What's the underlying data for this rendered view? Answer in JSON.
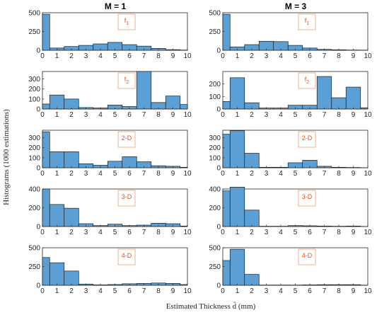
{
  "figure": {
    "col_titles": [
      "M = 1",
      "M = 3"
    ],
    "ylabel": "Histograms (1000 estimations)",
    "xlabel": "Estimated Thickness d̃ (mm)"
  },
  "colors": {
    "bar": "#5b9fd4",
    "bar_edge": "#1f1f1f",
    "label": "#d9531e",
    "label_box": "#e8a071"
  },
  "chart_data": [
    {
      "type": "bar",
      "panel_label": "f1",
      "col": 0,
      "row": 0,
      "ylim": [
        0,
        500
      ],
      "yticks": [
        0,
        250,
        500
      ],
      "xlim": [
        0,
        10
      ],
      "xticks": [
        0,
        1,
        2,
        3,
        4,
        5,
        6,
        7,
        8,
        9,
        10
      ],
      "bins": [
        [
          0,
          0.5,
          480
        ],
        [
          0.5,
          1.5,
          30
        ],
        [
          1.5,
          2.5,
          50
        ],
        [
          2.5,
          3.5,
          65
        ],
        [
          3.5,
          4.5,
          85
        ],
        [
          4.5,
          5.5,
          105
        ],
        [
          5.5,
          6.5,
          75
        ],
        [
          6.5,
          7.5,
          55
        ],
        [
          7.5,
          8.5,
          25
        ],
        [
          8.5,
          9.5,
          8
        ],
        [
          9.5,
          10,
          3
        ]
      ]
    },
    {
      "type": "bar",
      "panel_label": "f2",
      "col": 0,
      "row": 1,
      "ylim": [
        0,
        375
      ],
      "yticks": [
        0,
        100,
        200,
        300
      ],
      "xlim": [
        0,
        10
      ],
      "xticks": [
        0,
        1,
        2,
        3,
        4,
        5,
        6,
        7,
        8,
        9,
        10
      ],
      "bins": [
        [
          0,
          0.5,
          50
        ],
        [
          0.5,
          1.5,
          140
        ],
        [
          1.5,
          2.5,
          100
        ],
        [
          2.5,
          3.5,
          15
        ],
        [
          3.5,
          4.5,
          10
        ],
        [
          4.5,
          5.5,
          40
        ],
        [
          5.5,
          6.5,
          25
        ],
        [
          6.5,
          7.5,
          375
        ],
        [
          7.5,
          8.5,
          65
        ],
        [
          8.5,
          9.5,
          130
        ],
        [
          9.5,
          10,
          45
        ]
      ]
    },
    {
      "type": "bar",
      "panel_label": "2-D",
      "col": 0,
      "row": 2,
      "ylim": [
        0,
        375
      ],
      "yticks": [
        0,
        100,
        200,
        300
      ],
      "xlim": [
        0,
        10
      ],
      "xticks": [
        0,
        1,
        2,
        3,
        4,
        5,
        6,
        7,
        8,
        9,
        10
      ],
      "bins": [
        [
          0,
          0.5,
          360
        ],
        [
          0.5,
          1.5,
          160
        ],
        [
          1.5,
          2.5,
          160
        ],
        [
          2.5,
          3.5,
          40
        ],
        [
          3.5,
          4.5,
          25
        ],
        [
          4.5,
          5.5,
          65
        ],
        [
          5.5,
          6.5,
          110
        ],
        [
          6.5,
          7.5,
          60
        ],
        [
          7.5,
          8.5,
          20
        ],
        [
          8.5,
          9.5,
          15
        ],
        [
          9.5,
          10,
          5
        ]
      ]
    },
    {
      "type": "bar",
      "panel_label": "3-D",
      "col": 0,
      "row": 3,
      "ylim": [
        0,
        400
      ],
      "yticks": [
        0,
        200,
        400
      ],
      "xlim": [
        0,
        10
      ],
      "xticks": [
        0,
        1,
        2,
        3,
        4,
        5,
        6,
        7,
        8,
        9,
        10
      ],
      "bins": [
        [
          0,
          0.5,
          400
        ],
        [
          0.5,
          1.5,
          235
        ],
        [
          1.5,
          2.5,
          195
        ],
        [
          2.5,
          3.5,
          30
        ],
        [
          3.5,
          4.5,
          10
        ],
        [
          4.5,
          5.5,
          25
        ],
        [
          5.5,
          6.5,
          10
        ],
        [
          6.5,
          7.5,
          15
        ],
        [
          7.5,
          8.5,
          35
        ],
        [
          8.5,
          9.5,
          30
        ],
        [
          9.5,
          10,
          5
        ]
      ]
    },
    {
      "type": "bar",
      "panel_label": "4-D",
      "col": 0,
      "row": 4,
      "ylim": [
        0,
        500
      ],
      "yticks": [
        0,
        250,
        500
      ],
      "xlim": [
        0,
        10
      ],
      "xticks": [
        0,
        1,
        2,
        3,
        4,
        5,
        6,
        7,
        8,
        9,
        10
      ],
      "bins": [
        [
          0,
          0.5,
          370
        ],
        [
          0.5,
          1.5,
          300
        ],
        [
          1.5,
          2.5,
          190
        ],
        [
          2.5,
          3.5,
          15
        ],
        [
          3.5,
          4.5,
          5
        ],
        [
          4.5,
          5.5,
          10
        ],
        [
          5.5,
          6.5,
          20
        ],
        [
          6.5,
          7.5,
          25
        ],
        [
          7.5,
          8.5,
          30
        ],
        [
          8.5,
          9.5,
          25
        ],
        [
          9.5,
          10,
          10
        ]
      ]
    },
    {
      "type": "bar",
      "panel_label": "f1",
      "col": 1,
      "row": 0,
      "ylim": [
        0,
        500
      ],
      "yticks": [
        0,
        250,
        500
      ],
      "xlim": [
        0,
        10
      ],
      "xticks": [
        0,
        1,
        2,
        3,
        4,
        5,
        6,
        7,
        8,
        9,
        10
      ],
      "bins": [
        [
          0,
          0.5,
          480
        ],
        [
          0.5,
          1.5,
          45
        ],
        [
          1.5,
          2.5,
          75
        ],
        [
          2.5,
          3.5,
          120
        ],
        [
          3.5,
          4.5,
          115
        ],
        [
          4.5,
          5.5,
          65
        ],
        [
          5.5,
          6.5,
          30
        ],
        [
          6.5,
          7.5,
          12
        ],
        [
          7.5,
          8.5,
          6
        ],
        [
          8.5,
          9.5,
          3
        ],
        [
          9.5,
          10,
          2
        ]
      ]
    },
    {
      "type": "bar",
      "panel_label": "f2",
      "col": 1,
      "row": 1,
      "ylim": [
        0,
        300
      ],
      "yticks": [
        0,
        100,
        200
      ],
      "xlim": [
        0,
        10
      ],
      "xticks": [
        0,
        1,
        2,
        3,
        4,
        5,
        6,
        7,
        8,
        9,
        10
      ],
      "bins": [
        [
          0,
          0.5,
          60
        ],
        [
          0.5,
          1.5,
          250
        ],
        [
          1.5,
          2.5,
          50
        ],
        [
          2.5,
          3.5,
          8
        ],
        [
          3.5,
          4.5,
          8
        ],
        [
          4.5,
          5.5,
          30
        ],
        [
          5.5,
          6.5,
          30
        ],
        [
          6.5,
          7.5,
          260
        ],
        [
          7.5,
          8.5,
          90
        ],
        [
          8.5,
          9.5,
          175
        ],
        [
          9.5,
          10,
          10
        ]
      ]
    },
    {
      "type": "bar",
      "panel_label": "2-D",
      "col": 1,
      "row": 2,
      "ylim": [
        0,
        375
      ],
      "yticks": [
        0,
        100,
        200,
        300
      ],
      "xlim": [
        0,
        10
      ],
      "xticks": [
        0,
        1,
        2,
        3,
        4,
        5,
        6,
        7,
        8,
        9,
        10
      ],
      "bins": [
        [
          0,
          0.5,
          335
        ],
        [
          0.5,
          1.5,
          370
        ],
        [
          1.5,
          2.5,
          145
        ],
        [
          2.5,
          3.5,
          5
        ],
        [
          3.5,
          4.5,
          5
        ],
        [
          4.5,
          5.5,
          50
        ],
        [
          5.5,
          6.5,
          75
        ],
        [
          6.5,
          7.5,
          15
        ],
        [
          7.5,
          8.5,
          5
        ],
        [
          8.5,
          9.5,
          3
        ],
        [
          9.5,
          10,
          1
        ]
      ]
    },
    {
      "type": "bar",
      "panel_label": "3-D",
      "col": 1,
      "row": 3,
      "ylim": [
        0,
        400
      ],
      "yticks": [
        0,
        200,
        400
      ],
      "xlim": [
        0,
        10
      ],
      "xticks": [
        0,
        1,
        2,
        3,
        4,
        5,
        6,
        7,
        8,
        9,
        10
      ],
      "bins": [
        [
          0,
          0.5,
          380
        ],
        [
          0.5,
          1.5,
          420
        ],
        [
          1.5,
          2.5,
          175
        ],
        [
          2.5,
          3.5,
          3
        ],
        [
          3.5,
          4.5,
          3
        ],
        [
          4.5,
          5.5,
          10
        ],
        [
          5.5,
          6.5,
          8
        ],
        [
          6.5,
          7.5,
          5
        ],
        [
          7.5,
          8.5,
          3
        ],
        [
          8.5,
          9.5,
          5
        ],
        [
          9.5,
          10,
          1
        ]
      ]
    },
    {
      "type": "bar",
      "panel_label": "4-D",
      "col": 1,
      "row": 4,
      "ylim": [
        0,
        500
      ],
      "yticks": [
        0,
        250,
        500
      ],
      "xlim": [
        0,
        10
      ],
      "xticks": [
        0,
        1,
        2,
        3,
        4,
        5,
        6,
        7,
        8,
        9,
        10
      ],
      "bins": [
        [
          0,
          0.5,
          330
        ],
        [
          0.5,
          1.5,
          480
        ],
        [
          1.5,
          2.5,
          145
        ],
        [
          2.5,
          3.5,
          3
        ],
        [
          3.5,
          4.5,
          3
        ],
        [
          4.5,
          5.5,
          3
        ],
        [
          5.5,
          6.5,
          5
        ],
        [
          6.5,
          7.5,
          8
        ],
        [
          7.5,
          8.5,
          8
        ],
        [
          8.5,
          9.5,
          8
        ],
        [
          9.5,
          10,
          2
        ]
      ]
    }
  ]
}
